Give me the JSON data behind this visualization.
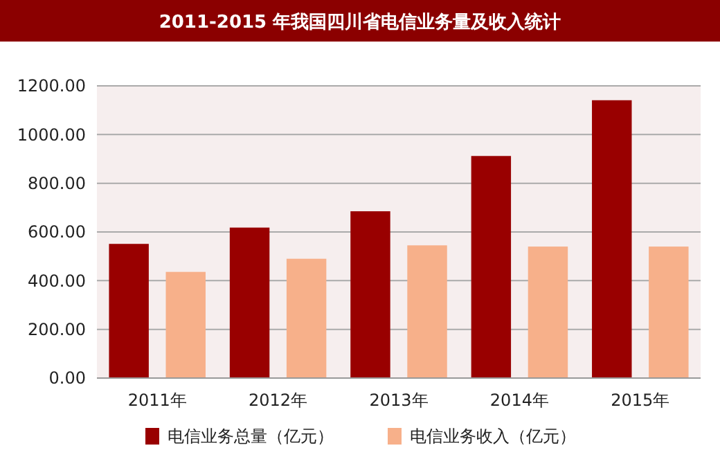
{
  "chart_data": {
    "type": "bar",
    "title": "2011-2015 年我国四川省电信业务量及收入统计",
    "categories": [
      "2011年",
      "2012年",
      "2013年",
      "2014年",
      "2015年"
    ],
    "series": [
      {
        "name": "电信业务总量（亿元）",
        "color": "#990000",
        "values": [
          551,
          618,
          685,
          912,
          1141
        ]
      },
      {
        "name": "电信业务收入（亿元）",
        "color": "#f7b08a",
        "values": [
          436,
          490,
          545,
          540,
          540
        ]
      }
    ],
    "ylim": [
      0,
      1200
    ],
    "yticks": [
      {
        "value": 0,
        "label": "0.00"
      },
      {
        "value": 200,
        "label": "200.00"
      },
      {
        "value": 400,
        "label": "400.00"
      },
      {
        "value": 600,
        "label": "600.00"
      },
      {
        "value": 800,
        "label": "800.00"
      },
      {
        "value": 1000,
        "label": "1000.00"
      },
      {
        "value": 1200,
        "label": "1200.00"
      }
    ],
    "grid": true,
    "legend": "bottom"
  }
}
